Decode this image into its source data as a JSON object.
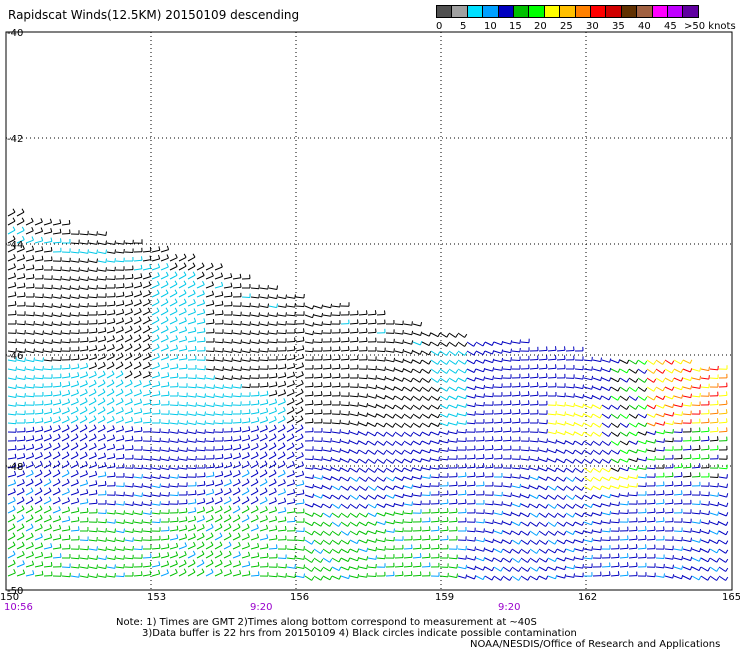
{
  "title": "Rapidscat Winds(12.5KM) 20150109 descending",
  "legend": {
    "unit_label": ">50 knots",
    "ticks": [
      "0",
      "5",
      "10",
      "15",
      "20",
      "25",
      "30",
      "35",
      "40",
      "45",
      ">50 knots"
    ],
    "colors": [
      "#505050",
      "#a0a0a0",
      "#00e0ff",
      "#00a0ff",
      "#0000c0",
      "#00c000",
      "#00ff00",
      "#ffff00",
      "#ffc000",
      "#ff8000",
      "#ff0000",
      "#d00000",
      "#603000",
      "#a06040",
      "#ff00ff",
      "#c000ff",
      "#6000a0"
    ]
  },
  "lat_labels": [
    "-40",
    "-42",
    "-44",
    "-46",
    "-48",
    "-50"
  ],
  "lon_labels": [
    "150",
    "153",
    "156",
    "159",
    "162",
    "165"
  ],
  "time_labels": [
    "10:56",
    "9:20",
    "9:20"
  ],
  "time_color": "#9900cc",
  "notes": {
    "line1": "Note: 1) Times are GMT 2)Times along bottom correspond to measurement at ~40S",
    "line2": "3)Data buffer is 22 hrs from 20150109 4) Black circles indicate possible contamination",
    "line3": "NOAA/NESDIS/Office of Research and Applications"
  }
}
